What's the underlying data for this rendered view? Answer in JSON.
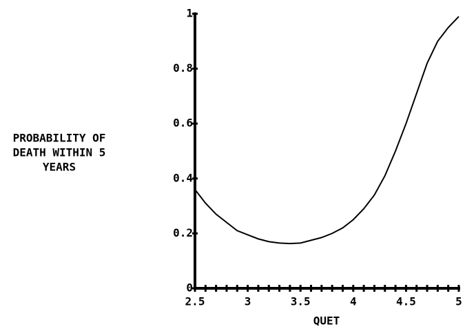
{
  "chart_data": {
    "type": "line",
    "ylabel": [
      "PROBABILITY OF",
      "DEATH WITHIN 5",
      "YEARS"
    ],
    "xlabel": "QUET",
    "x": [
      2.5,
      2.6,
      2.7,
      2.8,
      2.9,
      3.0,
      3.1,
      3.2,
      3.3,
      3.4,
      3.5,
      3.6,
      3.7,
      3.8,
      3.9,
      4.0,
      4.1,
      4.2,
      4.3,
      4.4,
      4.5,
      4.6,
      4.7,
      4.8,
      4.9,
      5.0
    ],
    "values": [
      0.36,
      0.31,
      0.27,
      0.24,
      0.21,
      0.195,
      0.18,
      0.17,
      0.165,
      0.163,
      0.165,
      0.175,
      0.185,
      0.2,
      0.22,
      0.25,
      0.29,
      0.34,
      0.41,
      0.5,
      0.6,
      0.71,
      0.82,
      0.9,
      0.95,
      0.99
    ],
    "color": "#000000",
    "xlim": [
      2.5,
      5
    ],
    "ylim": [
      0,
      1
    ],
    "xticks": [
      2.5,
      3,
      3.5,
      4,
      4.5,
      5
    ],
    "yticks": [
      0,
      0.2,
      0.4,
      0.6,
      0.8,
      1
    ]
  }
}
